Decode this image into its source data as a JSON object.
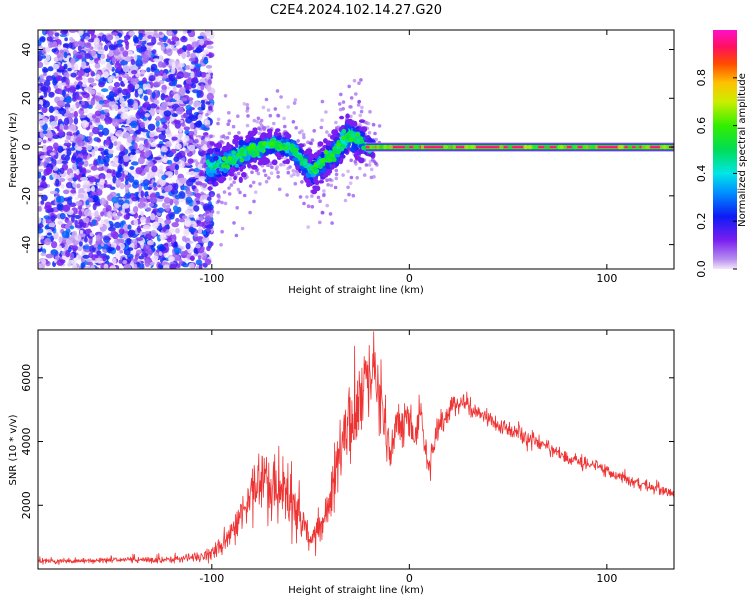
{
  "figure": {
    "title": "C2E4.2024.102.14.27.G20"
  },
  "colors": {
    "snr_line": "#ee3333",
    "axes": "#000000",
    "background": "#ffffff"
  },
  "chart_data": [
    {
      "type": "heatmap",
      "title": "",
      "xlabel": "Height of straight line (km)",
      "ylabel": "Frequency (Hz)",
      "xlim": [
        -188,
        134
      ],
      "ylim": [
        -50,
        48
      ],
      "x_ticks": [
        -100,
        0,
        100
      ],
      "y_ticks": [
        -40,
        -20,
        0,
        20,
        40
      ],
      "x_tick_labels": [
        "-100",
        "0",
        "100"
      ],
      "y_tick_labels": [
        "-40",
        "-20",
        "0",
        "20",
        "40"
      ],
      "grid": false,
      "colorbar": {
        "label": "Normalized spectral amplitude",
        "range": [
          0,
          1
        ],
        "ticks": [
          0.0,
          0.2,
          0.4,
          0.6,
          0.8
        ],
        "tick_labels": [
          "0.0",
          "0.2",
          "0.4",
          "0.6",
          "0.8"
        ],
        "colormap": "purple-blue-cyan-green-yellow-red-magenta"
      },
      "noise_region": {
        "x_range": [
          -188,
          -100
        ],
        "y_range": [
          -50,
          48
        ],
        "amplitude_range": [
          0.0,
          0.3
        ]
      },
      "ridge": [
        {
          "x": -100,
          "y": -8,
          "spread": 7
        },
        {
          "x": -90,
          "y": -5,
          "spread": 5
        },
        {
          "x": -80,
          "y": -1,
          "spread": 5
        },
        {
          "x": -70,
          "y": 1,
          "spread": 4
        },
        {
          "x": -60,
          "y": 0,
          "spread": 4
        },
        {
          "x": -50,
          "y": -10,
          "spread": 5
        },
        {
          "x": -40,
          "y": -4,
          "spread": 5
        },
        {
          "x": -30,
          "y": 5,
          "spread": 6
        },
        {
          "x": -20,
          "y": 0,
          "spread": 3
        },
        {
          "x": 0,
          "y": 0,
          "spread": 2
        },
        {
          "x": 134,
          "y": 0,
          "spread": 1.5
        }
      ],
      "annotations": []
    },
    {
      "type": "line",
      "title": "",
      "xlabel": "Height of straight line (km)",
      "ylabel": "SNR (10 * v/v)",
      "xlim": [
        -188,
        134
      ],
      "ylim": [
        0,
        7500
      ],
      "x_ticks": [
        -100,
        0,
        100
      ],
      "y_ticks": [
        2000,
        4000,
        6000
      ],
      "x_tick_labels": [
        "-100",
        "0",
        "100"
      ],
      "y_tick_labels": [
        "2000",
        "4000",
        "6000"
      ],
      "grid": false,
      "series": [
        {
          "color": "#ee3333",
          "x": [
            -188,
            -170,
            -150,
            -130,
            -115,
            -105,
            -95,
            -88,
            -82,
            -78,
            -74,
            -70,
            -66,
            -62,
            -58,
            -54,
            -50,
            -46,
            -42,
            -38,
            -34,
            -30,
            -26,
            -22,
            -18,
            -14,
            -10,
            -6,
            -2,
            2,
            6,
            10,
            14,
            18,
            22,
            26,
            30,
            40,
            50,
            60,
            70,
            80,
            90,
            100,
            110,
            120,
            134
          ],
          "y": [
            250,
            250,
            280,
            300,
            320,
            400,
            700,
            1400,
            2000,
            2600,
            3200,
            2500,
            2700,
            2300,
            2000,
            1500,
            800,
            1200,
            1700,
            2800,
            3800,
            4500,
            5200,
            5800,
            6600,
            5000,
            3500,
            4400,
            4700,
            4200,
            4800,
            3100,
            4300,
            4800,
            5100,
            5300,
            5100,
            4700,
            4400,
            4100,
            3800,
            3500,
            3300,
            3100,
            2800,
            2600,
            2400
          ],
          "noise_amplitude": [
            80,
            80,
            90,
            100,
            110,
            150,
            300,
            500,
            700,
            900,
            1100,
            900,
            1000,
            900,
            800,
            600,
            350,
            500,
            700,
            900,
            1100,
            1200,
            1200,
            1200,
            1300,
            1100,
            900,
            700,
            600,
            500,
            500,
            500,
            400,
            400,
            350,
            350,
            300,
            280,
            260,
            240,
            220,
            200,
            190,
            180,
            170,
            160,
            150
          ]
        }
      ],
      "annotations": []
    }
  ]
}
